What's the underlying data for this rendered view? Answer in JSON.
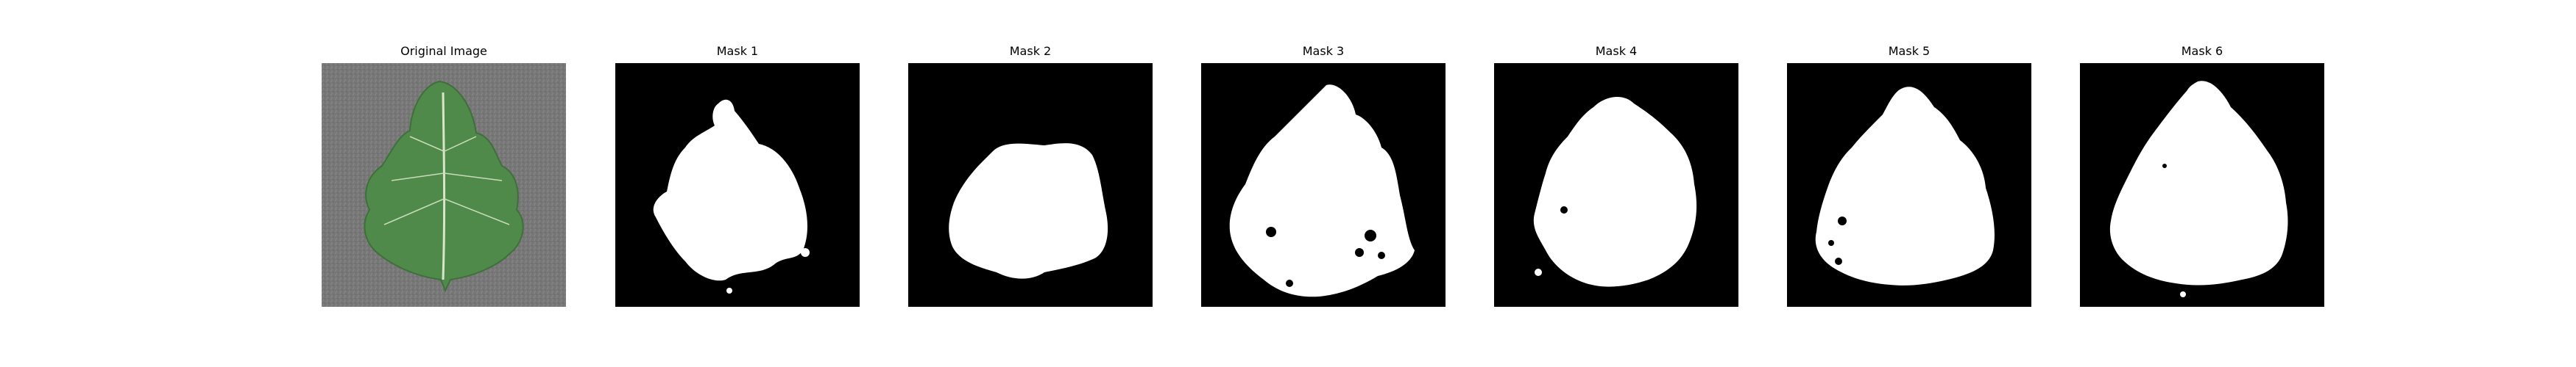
{
  "figure": {
    "panels": [
      {
        "id": "original",
        "title": "Original Image",
        "kind": "photo"
      },
      {
        "id": "mask1",
        "title": "Mask 1",
        "kind": "mask"
      },
      {
        "id": "mask2",
        "title": "Mask 2",
        "kind": "mask"
      },
      {
        "id": "mask3",
        "title": "Mask 3",
        "kind": "mask"
      },
      {
        "id": "mask4",
        "title": "Mask 4",
        "kind": "mask"
      },
      {
        "id": "mask5",
        "title": "Mask 5",
        "kind": "mask"
      },
      {
        "id": "mask6",
        "title": "Mask 6",
        "kind": "mask"
      }
    ]
  },
  "colors": {
    "mask_background": "#000000",
    "mask_foreground": "#ffffff",
    "photo_background": "#7a7a7a",
    "leaf_green": "#4f8a4a"
  }
}
